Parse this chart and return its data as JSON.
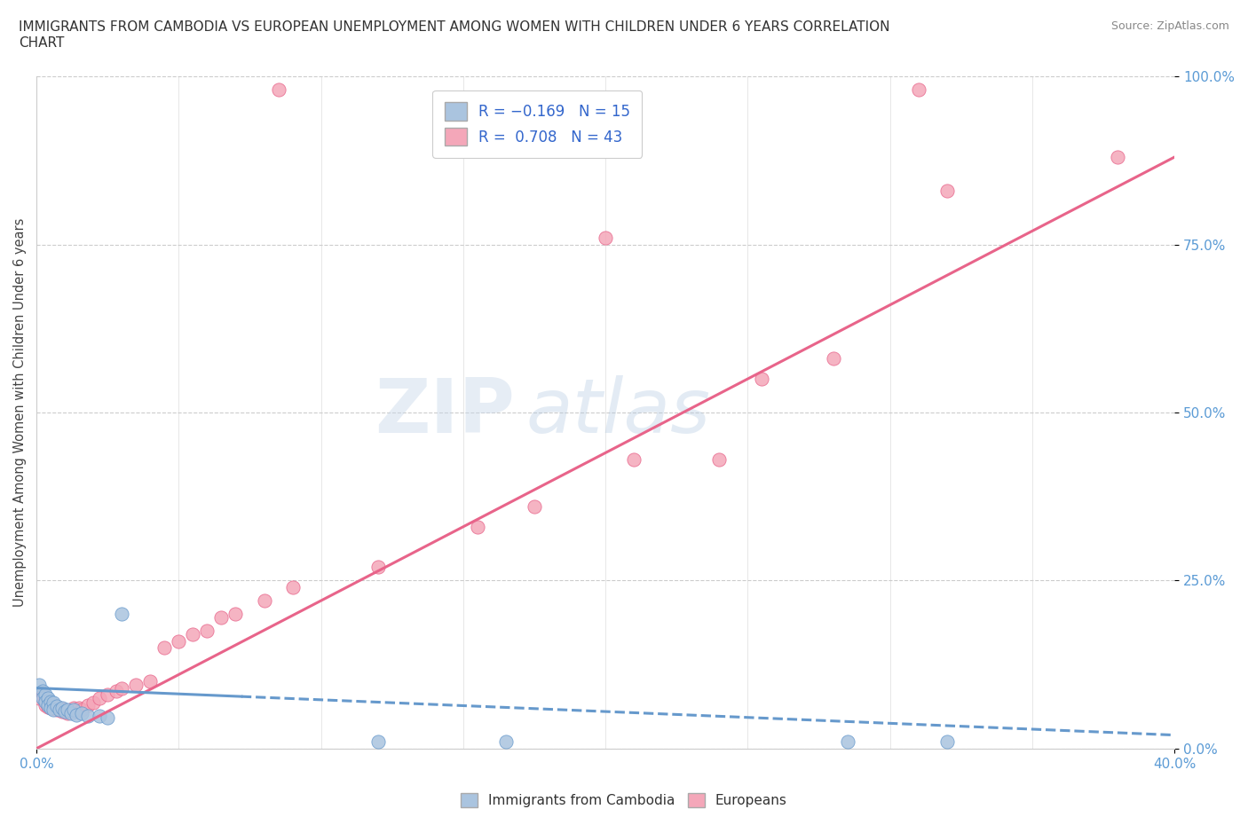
{
  "title": "IMMIGRANTS FROM CAMBODIA VS EUROPEAN UNEMPLOYMENT AMONG WOMEN WITH CHILDREN UNDER 6 YEARS CORRELATION\nCHART",
  "source": "Source: ZipAtlas.com",
  "ylabel": "Unemployment Among Women with Children Under 6 years",
  "xmin": 0.0,
  "xmax": 0.4,
  "ymin": 0.0,
  "ymax": 1.0,
  "ytick_labels": [
    "0.0%",
    "25.0%",
    "50.0%",
    "75.0%",
    "100.0%"
  ],
  "ytick_values": [
    0.0,
    0.25,
    0.5,
    0.75,
    1.0
  ],
  "color_cambodia": "#aac4df",
  "color_european": "#f4a7b9",
  "color_line_cambodia": "#6699cc",
  "color_line_european": "#e8648a",
  "watermark_zip": "ZIP",
  "watermark_atlas": "atlas",
  "cambodia_points": [
    [
      0.001,
      0.095
    ],
    [
      0.002,
      0.085
    ],
    [
      0.002,
      0.075
    ],
    [
      0.003,
      0.08
    ],
    [
      0.003,
      0.07
    ],
    [
      0.004,
      0.075
    ],
    [
      0.004,
      0.065
    ],
    [
      0.005,
      0.07
    ],
    [
      0.005,
      0.06
    ],
    [
      0.006,
      0.068
    ],
    [
      0.006,
      0.058
    ],
    [
      0.007,
      0.063
    ],
    [
      0.008,
      0.058
    ],
    [
      0.009,
      0.06
    ],
    [
      0.01,
      0.055
    ],
    [
      0.011,
      0.058
    ],
    [
      0.012,
      0.052
    ],
    [
      0.013,
      0.058
    ],
    [
      0.014,
      0.05
    ],
    [
      0.016,
      0.052
    ],
    [
      0.018,
      0.048
    ],
    [
      0.022,
      0.048
    ],
    [
      0.025,
      0.046
    ],
    [
      0.03,
      0.2
    ],
    [
      0.12,
      0.01
    ],
    [
      0.165,
      0.01
    ],
    [
      0.285,
      0.01
    ],
    [
      0.32,
      0.01
    ]
  ],
  "european_points": [
    [
      0.001,
      0.075
    ],
    [
      0.002,
      0.08
    ],
    [
      0.003,
      0.07
    ],
    [
      0.003,
      0.065
    ],
    [
      0.004,
      0.068
    ],
    [
      0.004,
      0.062
    ],
    [
      0.005,
      0.065
    ],
    [
      0.005,
      0.06
    ],
    [
      0.006,
      0.062
    ],
    [
      0.007,
      0.058
    ],
    [
      0.008,
      0.06
    ],
    [
      0.009,
      0.055
    ],
    [
      0.01,
      0.058
    ],
    [
      0.011,
      0.052
    ],
    [
      0.012,
      0.055
    ],
    [
      0.013,
      0.06
    ],
    [
      0.014,
      0.055
    ],
    [
      0.015,
      0.06
    ],
    [
      0.016,
      0.058
    ],
    [
      0.018,
      0.065
    ],
    [
      0.02,
      0.068
    ],
    [
      0.022,
      0.075
    ],
    [
      0.025,
      0.08
    ],
    [
      0.028,
      0.085
    ],
    [
      0.03,
      0.09
    ],
    [
      0.035,
      0.095
    ],
    [
      0.04,
      0.1
    ],
    [
      0.045,
      0.15
    ],
    [
      0.05,
      0.16
    ],
    [
      0.055,
      0.17
    ],
    [
      0.06,
      0.175
    ],
    [
      0.065,
      0.195
    ],
    [
      0.07,
      0.2
    ],
    [
      0.08,
      0.22
    ],
    [
      0.09,
      0.24
    ],
    [
      0.12,
      0.27
    ],
    [
      0.155,
      0.33
    ],
    [
      0.175,
      0.36
    ],
    [
      0.21,
      0.43
    ],
    [
      0.24,
      0.43
    ],
    [
      0.255,
      0.55
    ],
    [
      0.28,
      0.58
    ],
    [
      0.32,
      0.83
    ],
    [
      0.085,
      0.98
    ],
    [
      0.2,
      0.76
    ],
    [
      0.31,
      0.98
    ],
    [
      0.38,
      0.88
    ]
  ],
  "cam_line_x0": 0.0,
  "cam_line_y0": 0.09,
  "cam_line_x1": 0.4,
  "cam_line_y1": 0.02,
  "euro_line_x0": 0.0,
  "euro_line_y0": 0.0,
  "euro_line_x1": 0.4,
  "euro_line_y1": 0.88
}
